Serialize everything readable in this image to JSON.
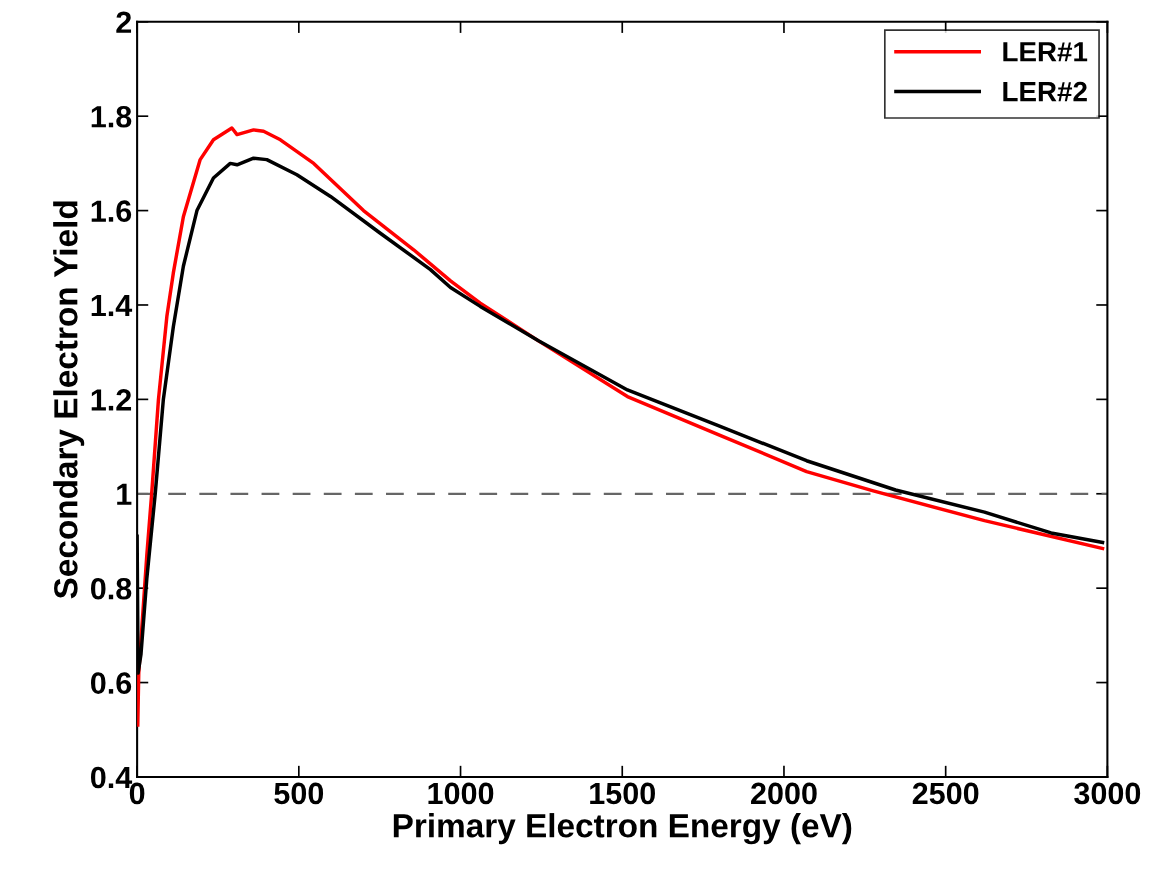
{
  "chart_data": {
    "type": "line",
    "xlabel": "Primary Electron Energy (eV)",
    "ylabel": "Secondary Electron Yield",
    "xlim": [
      0,
      3000
    ],
    "xticks": [
      0,
      500,
      1000,
      1500,
      2000,
      2500,
      3000
    ],
    "ylim": [
      0.4,
      2
    ],
    "yticks": [
      0.4,
      0.6,
      0.8,
      1,
      1.2,
      1.4,
      1.6,
      1.8,
      2
    ],
    "grid": false,
    "legend": "top right",
    "line_style": "solid",
    "marker": "none",
    "ref_lines": [
      {
        "axis": "y",
        "value": 1,
        "color": "#666666",
        "line_style": "dashed"
      }
    ],
    "series": [
      {
        "name": "LER#1",
        "color": "#ff0000",
        "x": [
          2,
          5,
          15,
          30,
          45,
          66,
          92,
          112,
          143,
          195,
          236,
          293,
          309,
          360,
          391,
          443,
          546,
          700,
          855,
          969,
          1061,
          1241,
          1516,
          1795,
          2070,
          2276,
          2620,
          2985
        ],
        "values": [
          0.51,
          0.62,
          0.72,
          0.87,
          1.0,
          1.2,
          1.376,
          1.468,
          1.587,
          1.708,
          1.75,
          1.775,
          1.761,
          1.771,
          1.768,
          1.75,
          1.7,
          1.6,
          1.517,
          1.451,
          1.404,
          1.324,
          1.206,
          1.126,
          1.047,
          1.006,
          0.943,
          0.884
        ]
      },
      {
        "name": "LER#2",
        "color": "#000000",
        "x": [
          0,
          3,
          12,
          30,
          56,
          81,
          112,
          143,
          185,
          236,
          288,
          309,
          360,
          401,
          494,
          598,
          752,
          907,
          969,
          1061,
          1241,
          1516,
          1795,
          2070,
          2345,
          2620,
          2826,
          2985
        ],
        "values": [
          0.91,
          0.62,
          0.66,
          0.82,
          1.0,
          1.199,
          1.354,
          1.482,
          1.6,
          1.669,
          1.7,
          1.697,
          1.711,
          1.708,
          1.676,
          1.63,
          1.552,
          1.475,
          1.437,
          1.397,
          1.324,
          1.22,
          1.145,
          1.07,
          1.008,
          0.961,
          0.917,
          0.897
        ]
      }
    ]
  }
}
